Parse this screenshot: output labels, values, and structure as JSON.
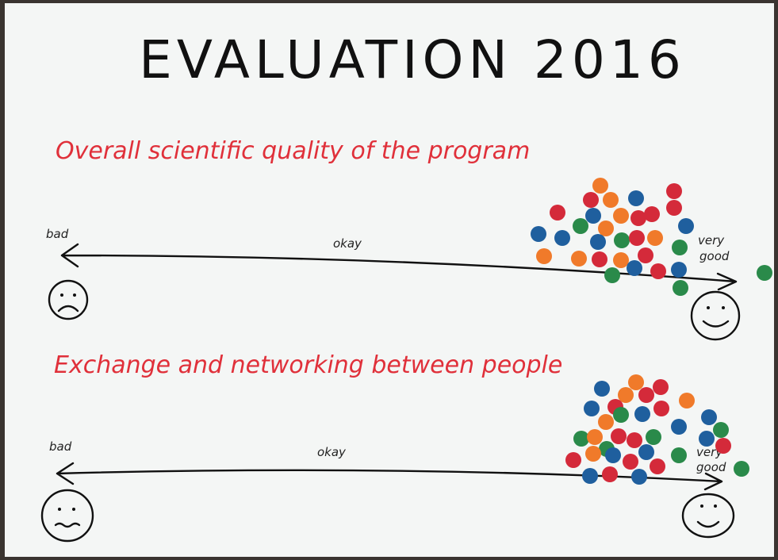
{
  "title": "EVALUATION 2016",
  "sections": [
    {
      "question": "Overall scientific quality of the program",
      "left_label": "bad",
      "middle_label": "okay",
      "right_label": [
        "very",
        "good"
      ]
    },
    {
      "question": "Exchange and networking between people",
      "left_label": "bad",
      "middle_label": "okay",
      "right_label": [
        "very",
        "good"
      ]
    }
  ]
}
